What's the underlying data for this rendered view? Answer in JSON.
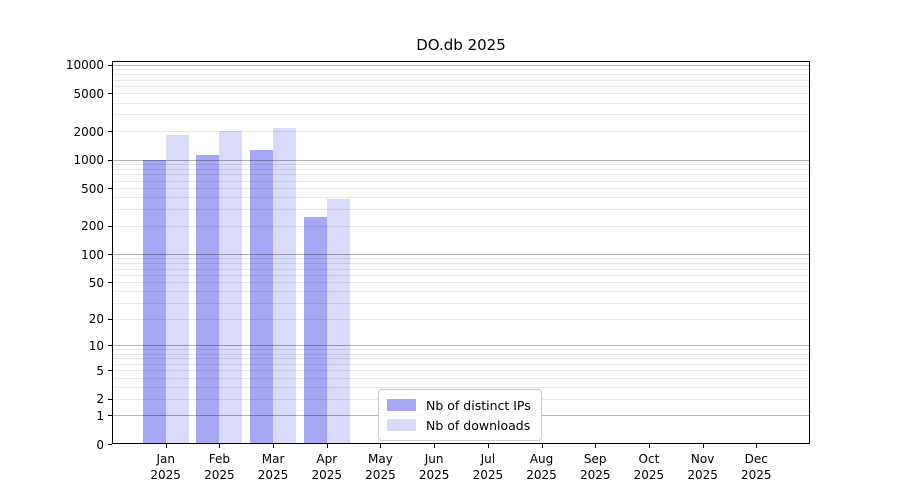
{
  "title": "DO.db 2025",
  "chart_data": {
    "type": "bar",
    "title": "DO.db 2025",
    "categories": [
      "Jan 2025",
      "Feb 2025",
      "Mar 2025",
      "Apr 2025",
      "May 2025",
      "Jun 2025",
      "Jul 2025",
      "Aug 2025",
      "Sep 2025",
      "Oct 2025",
      "Nov 2025",
      "Dec 2025"
    ],
    "series": [
      {
        "name": "Nb of distinct IPs",
        "color": "#a6a6f4",
        "values": [
          1000,
          1110,
          1270,
          250,
          null,
          null,
          null,
          null,
          null,
          null,
          null,
          null
        ]
      },
      {
        "name": "Nb of downloads",
        "color": "#d9daf9",
        "values": [
          1840,
          2020,
          2150,
          380,
          null,
          null,
          null,
          null,
          null,
          null,
          null,
          null
        ]
      }
    ],
    "yscale": "log10(value+1)",
    "ylim": [
      0,
      11000
    ],
    "y_tick_labels": [
      10000,
      5000,
      2000,
      1000,
      500,
      200,
      100,
      50,
      20,
      10,
      5,
      2,
      1,
      0
    ],
    "grid": {
      "major_at": [
        1,
        10,
        100,
        1000,
        10000
      ],
      "minor_per_decade": [
        2,
        3,
        4,
        5,
        6,
        7,
        8,
        9
      ],
      "major_color": "rgba(0,0,0,0.30)",
      "minor_color": "rgba(0,0,0,0.09)"
    },
    "legend": {
      "position": "lower center"
    }
  }
}
